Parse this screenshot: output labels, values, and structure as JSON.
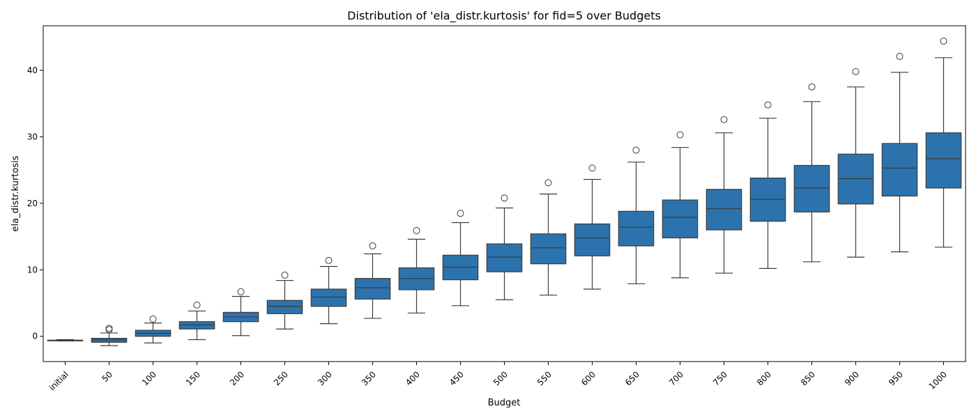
{
  "chart_data": {
    "type": "box",
    "title": "Distribution of 'ela_distr.kurtosis' for fid=5 over Budgets",
    "xlabel": "Budget",
    "ylabel": "ela_distr.kurtosis",
    "categories": [
      "initial",
      "50",
      "100",
      "150",
      "200",
      "250",
      "300",
      "350",
      "400",
      "450",
      "500",
      "550",
      "600",
      "650",
      "700",
      "750",
      "800",
      "850",
      "900",
      "950",
      "1000"
    ],
    "ylim": [
      -3.8,
      46.7
    ],
    "yticks": [
      0,
      10,
      20,
      30,
      40
    ],
    "grid": false,
    "box_color": "#2c73ad",
    "boxes": [
      {
        "whisker_low": -0.7,
        "q1": -0.65,
        "median": -0.62,
        "q3": -0.58,
        "whisker_high": -0.5,
        "outliers": []
      },
      {
        "whisker_low": -1.4,
        "q1": -0.9,
        "median": -0.55,
        "q3": -0.3,
        "whisker_high": 0.5,
        "outliers": [
          1.0,
          1.2
        ]
      },
      {
        "whisker_low": -1.0,
        "q1": 0.0,
        "median": 0.45,
        "q3": 0.9,
        "whisker_high": 2.0,
        "outliers": [
          2.6
        ]
      },
      {
        "whisker_low": -0.5,
        "q1": 1.1,
        "median": 1.7,
        "q3": 2.2,
        "whisker_high": 3.8,
        "outliers": [
          4.7
        ]
      },
      {
        "whisker_low": 0.1,
        "q1": 2.2,
        "median": 2.9,
        "q3": 3.6,
        "whisker_high": 6.0,
        "outliers": [
          6.7
        ]
      },
      {
        "whisker_low": 1.1,
        "q1": 3.4,
        "median": 4.5,
        "q3": 5.4,
        "whisker_high": 8.4,
        "outliers": [
          9.2
        ]
      },
      {
        "whisker_low": 1.9,
        "q1": 4.5,
        "median": 5.9,
        "q3": 7.1,
        "whisker_high": 10.5,
        "outliers": [
          11.4
        ]
      },
      {
        "whisker_low": 2.7,
        "q1": 5.6,
        "median": 7.3,
        "q3": 8.7,
        "whisker_high": 12.4,
        "outliers": [
          13.6
        ]
      },
      {
        "whisker_low": 3.5,
        "q1": 7.0,
        "median": 8.7,
        "q3": 10.3,
        "whisker_high": 14.6,
        "outliers": [
          15.9
        ]
      },
      {
        "whisker_low": 4.6,
        "q1": 8.5,
        "median": 10.4,
        "q3": 12.2,
        "whisker_high": 17.1,
        "outliers": [
          18.5
        ]
      },
      {
        "whisker_low": 5.5,
        "q1": 9.7,
        "median": 11.9,
        "q3": 13.9,
        "whisker_high": 19.3,
        "outliers": [
          20.8
        ]
      },
      {
        "whisker_low": 6.2,
        "q1": 10.9,
        "median": 13.3,
        "q3": 15.4,
        "whisker_high": 21.4,
        "outliers": [
          23.1
        ]
      },
      {
        "whisker_low": 7.1,
        "q1": 12.1,
        "median": 14.8,
        "q3": 16.9,
        "whisker_high": 23.6,
        "outliers": [
          25.3
        ]
      },
      {
        "whisker_low": 7.9,
        "q1": 13.6,
        "median": 16.4,
        "q3": 18.8,
        "whisker_high": 26.2,
        "outliers": [
          28.0
        ]
      },
      {
        "whisker_low": 8.8,
        "q1": 14.8,
        "median": 17.9,
        "q3": 20.5,
        "whisker_high": 28.4,
        "outliers": [
          30.3
        ]
      },
      {
        "whisker_low": 9.5,
        "q1": 16.0,
        "median": 19.2,
        "q3": 22.1,
        "whisker_high": 30.6,
        "outliers": [
          32.6
        ]
      },
      {
        "whisker_low": 10.2,
        "q1": 17.3,
        "median": 20.6,
        "q3": 23.8,
        "whisker_high": 32.8,
        "outliers": [
          34.8
        ]
      },
      {
        "whisker_low": 11.2,
        "q1": 18.7,
        "median": 22.3,
        "q3": 25.7,
        "whisker_high": 35.3,
        "outliers": [
          37.5
        ]
      },
      {
        "whisker_low": 11.9,
        "q1": 19.9,
        "median": 23.7,
        "q3": 27.4,
        "whisker_high": 37.5,
        "outliers": [
          39.8
        ]
      },
      {
        "whisker_low": 12.7,
        "q1": 21.1,
        "median": 25.3,
        "q3": 29.0,
        "whisker_high": 39.7,
        "outliers": [
          42.1
        ]
      },
      {
        "whisker_low": 13.4,
        "q1": 22.3,
        "median": 26.7,
        "q3": 30.6,
        "whisker_high": 41.9,
        "outliers": [
          44.4
        ]
      }
    ]
  }
}
